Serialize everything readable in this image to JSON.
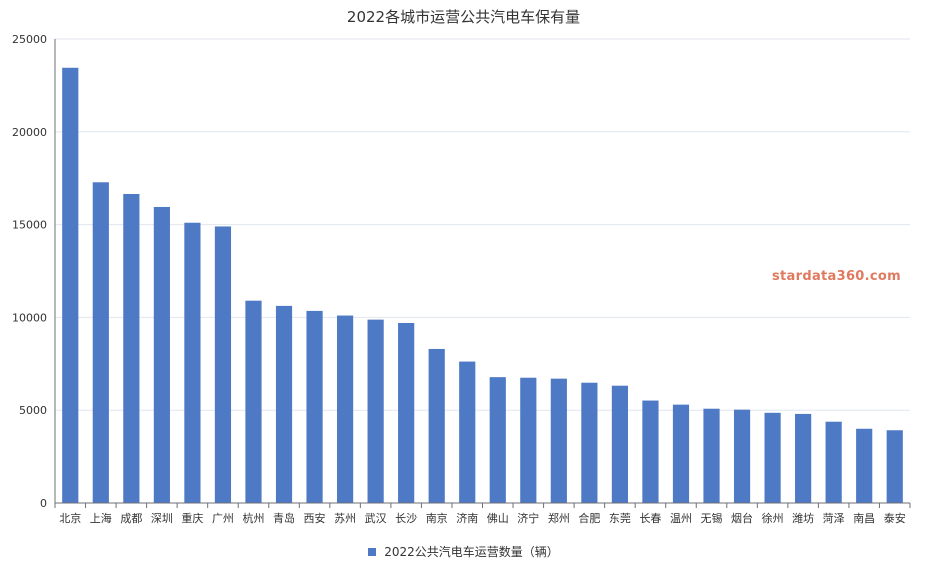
{
  "chart_data": {
    "type": "bar",
    "title": "2022各城市运营公共汽电车保有量",
    "watermark": "stardata360.com",
    "categories": [
      "北京",
      "上海",
      "成都",
      "深圳",
      "重庆",
      "广州",
      "杭州",
      "青岛",
      "西安",
      "苏州",
      "武汉",
      "长沙",
      "南京",
      "济南",
      "佛山",
      "济宁",
      "郑州",
      "合肥",
      "东莞",
      "长春",
      "温州",
      "无锡",
      "烟台",
      "徐州",
      "潍坊",
      "菏泽",
      "南昌",
      "泰安"
    ],
    "series": [
      {
        "name": "2022公共汽电车运营数量（辆）",
        "color": "#4e79c4",
        "values": [
          23450,
          17280,
          16650,
          15950,
          15100,
          14900,
          10900,
          10620,
          10350,
          10100,
          9880,
          9700,
          8300,
          7620,
          6780,
          6750,
          6700,
          6480,
          6320,
          5520,
          5300,
          5080,
          5030,
          4860,
          4800,
          4380,
          4000,
          3920
        ]
      }
    ],
    "ylim": [
      0,
      25000
    ],
    "yticks": [
      0,
      5000,
      10000,
      15000,
      20000,
      25000
    ],
    "grid": true,
    "legend_position": "bottom"
  }
}
